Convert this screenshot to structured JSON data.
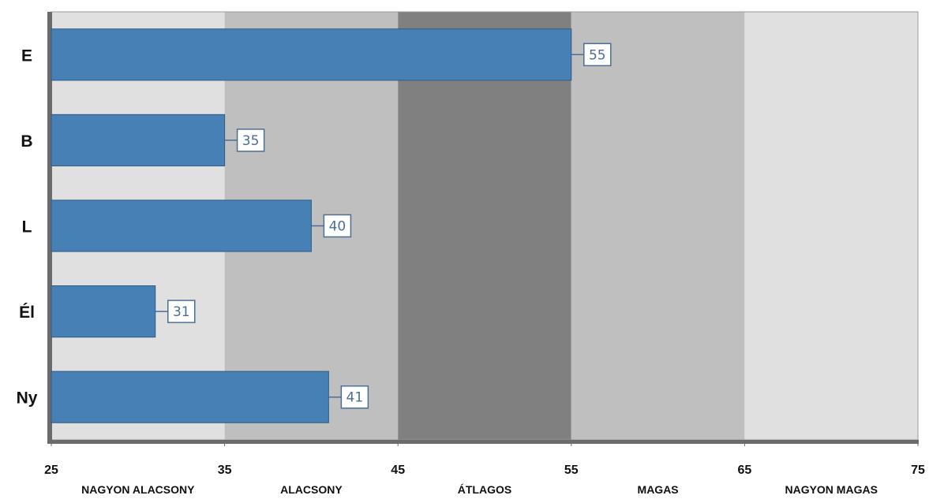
{
  "chart_data": {
    "type": "bar",
    "orientation": "horizontal",
    "title": "",
    "xlabel": "",
    "ylabel": "",
    "categories": [
      "E",
      "B",
      "L",
      "Él",
      "Ny"
    ],
    "values": [
      55,
      35,
      40,
      31,
      41
    ],
    "value_labels": [
      "55",
      "35",
      "40",
      "31",
      "41"
    ],
    "xlim": [
      25,
      75
    ],
    "x_ticks": [
      25,
      35,
      45,
      55,
      65,
      75
    ],
    "x_tick_labels": [
      "25",
      "35",
      "45",
      "55",
      "65",
      "75"
    ],
    "bands": [
      {
        "from": 25,
        "to": 35,
        "label": "NAGYON ALACSONY",
        "color": "#e0e0e0"
      },
      {
        "from": 35,
        "to": 45,
        "label": "ALACSONY",
        "color": "#bfbfbf"
      },
      {
        "from": 45,
        "to": 55,
        "label": "ÁTLAGOS",
        "color": "#808080"
      },
      {
        "from": 55,
        "to": 65,
        "label": "MAGAS",
        "color": "#bfbfbf"
      },
      {
        "from": 65,
        "to": 75,
        "label": "NAGYON MAGAS",
        "color": "#e0e0e0"
      }
    ],
    "bar_color": "#4780b4",
    "grid": false,
    "legend": "none"
  }
}
